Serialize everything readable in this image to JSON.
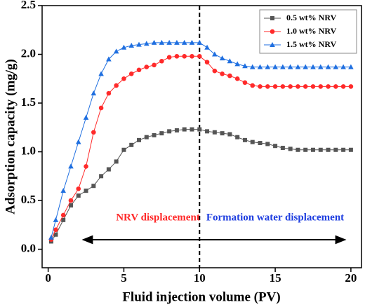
{
  "chart_data": {
    "type": "line",
    "x_label": "Fluid injection volume (PV)",
    "y_label": "Adsorption capacity (mg/g)",
    "x": [
      0.2,
      0.5,
      1,
      1.5,
      2,
      2.5,
      3,
      3.5,
      4,
      4.5,
      5,
      5.5,
      6,
      6.5,
      7,
      7.5,
      8,
      8.5,
      9,
      9.5,
      10,
      10.5,
      11,
      11.5,
      12,
      12.5,
      13,
      13.5,
      14,
      14.5,
      15,
      15.5,
      16,
      16.5,
      17,
      17.5,
      18,
      18.5,
      19,
      19.5,
      20
    ],
    "series": [
      {
        "name": "0.5 wt% NRV",
        "color": "#555555",
        "marker": "square",
        "values": [
          0.08,
          0.15,
          0.3,
          0.45,
          0.55,
          0.6,
          0.65,
          0.75,
          0.82,
          0.9,
          1.02,
          1.07,
          1.12,
          1.15,
          1.17,
          1.19,
          1.21,
          1.22,
          1.23,
          1.23,
          1.23,
          1.21,
          1.2,
          1.19,
          1.18,
          1.15,
          1.12,
          1.1,
          1.09,
          1.08,
          1.06,
          1.04,
          1.03,
          1.02,
          1.02,
          1.02,
          1.02,
          1.02,
          1.02,
          1.02,
          1.02
        ]
      },
      {
        "name": "1.0 wt% NRV",
        "color": "#ff2a2a",
        "marker": "circle",
        "values": [
          0.1,
          0.2,
          0.35,
          0.5,
          0.62,
          0.85,
          1.2,
          1.45,
          1.6,
          1.68,
          1.75,
          1.8,
          1.84,
          1.87,
          1.89,
          1.93,
          1.97,
          1.98,
          1.98,
          1.98,
          1.98,
          1.92,
          1.83,
          1.8,
          1.78,
          1.75,
          1.71,
          1.68,
          1.67,
          1.67,
          1.67,
          1.67,
          1.67,
          1.67,
          1.67,
          1.67,
          1.67,
          1.67,
          1.67,
          1.67,
          1.67
        ]
      },
      {
        "name": "1.5 wt% NRV",
        "color": "#1f6fe0",
        "marker": "triangle",
        "values": [
          0.12,
          0.3,
          0.6,
          0.85,
          1.1,
          1.35,
          1.6,
          1.8,
          1.95,
          2.03,
          2.07,
          2.09,
          2.1,
          2.11,
          2.12,
          2.12,
          2.12,
          2.12,
          2.12,
          2.12,
          2.12,
          2.07,
          2.0,
          1.96,
          1.93,
          1.9,
          1.88,
          1.87,
          1.87,
          1.87,
          1.87,
          1.87,
          1.87,
          1.87,
          1.87,
          1.87,
          1.87,
          1.87,
          1.87,
          1.87,
          1.87
        ]
      }
    ],
    "xlim": [
      -0.4,
      20.7
    ],
    "ylim": [
      -0.19,
      2.5
    ],
    "xticks": [
      0,
      5,
      10,
      15,
      20
    ],
    "yticks": [
      {
        "value": 0,
        "label": "0.0"
      },
      {
        "value": 0.5,
        "label": "0.5"
      },
      {
        "value": 1,
        "label": "1.0"
      },
      {
        "value": 1.5,
        "label": "1.5"
      },
      {
        "value": 2,
        "label": "2.0"
      },
      {
        "value": 2.5,
        "label": "2.5"
      }
    ],
    "vline": 10,
    "annotations": [
      {
        "text": "NRV displacement",
        "color": "#ff2a2a"
      },
      {
        "text": "Formation water displacement",
        "color": "#1f3fe0"
      }
    ],
    "legend": "upper right"
  }
}
